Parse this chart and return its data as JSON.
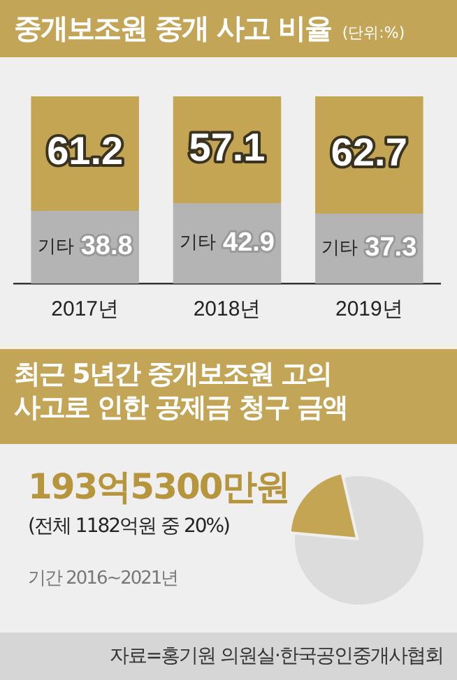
{
  "chart_data": [
    {
      "type": "bar",
      "title": "중개보조원 중개 사고 비율",
      "subtitle": "(단위:%)",
      "categories": [
        "2017년",
        "2018년",
        "2019년"
      ],
      "stacked": true,
      "series": [
        {
          "name": "기타",
          "color": "#b4b4b4",
          "values": [
            38.8,
            42.9,
            37.3
          ]
        },
        {
          "color": "#c4a554",
          "values": [
            61.2,
            57.1,
            62.7
          ]
        }
      ],
      "ylim": [
        0,
        100
      ],
      "tick_labels": "x",
      "grid": false,
      "legend": false,
      "data_labels": true
    },
    {
      "type": "pie",
      "title": "최근 5년간 중개보조원 고의 사고로 인한 공제금 청구 금액",
      "categories": [
        null,
        null
      ],
      "values": [
        20,
        80
      ],
      "colors": [
        "#c4a554",
        "#dcdcdc"
      ],
      "annotations": [
        "193억5300만원",
        "(전체 1182억원 중 20%)",
        "기간 2016~2021년",
        "자료=홍기원 의원실·한국공인중개사협회"
      ],
      "legend": false
    }
  ]
}
